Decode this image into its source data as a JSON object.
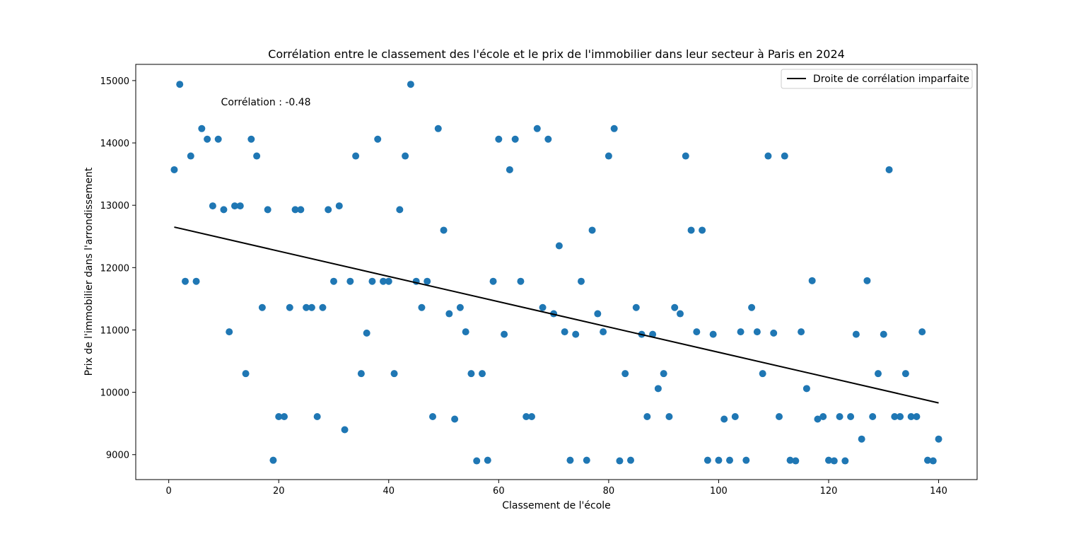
{
  "chart_data": {
    "type": "scatter",
    "title": "Corrélation entre le classement des l'école et le prix de l'immobilier dans leur secteur à Paris en 2024",
    "xlabel": "Classement de l'école",
    "ylabel": "Prix de l'immobilier dans l'arrondissement",
    "xlim": [
      -6,
      147
    ],
    "ylim": [
      8600,
      15260
    ],
    "x_ticks": [
      0,
      20,
      40,
      60,
      80,
      100,
      120,
      140
    ],
    "y_ticks": [
      9000,
      10000,
      11000,
      12000,
      13000,
      14000,
      15000
    ],
    "grid": false,
    "legend_position": "top-right",
    "annotation": "Corrélation : -0.48",
    "annotation_pos": [
      9.5,
      14600
    ],
    "colors": {
      "points": "#1f77b4",
      "line": "#000000"
    },
    "series": [
      {
        "kind": "scatter",
        "x": [
          1,
          2,
          3,
          4,
          5,
          6,
          7,
          8,
          9,
          10,
          11,
          12,
          13,
          14,
          15,
          16,
          17,
          18,
          19,
          20,
          21,
          22,
          23,
          24,
          25,
          26,
          27,
          28,
          29,
          30,
          31,
          32,
          33,
          34,
          35,
          36,
          37,
          38,
          39,
          40,
          41,
          42,
          43,
          44,
          45,
          46,
          47,
          48,
          49,
          50,
          51,
          52,
          53,
          54,
          55,
          56,
          57,
          58,
          59,
          60,
          61,
          62,
          63,
          64,
          65,
          66,
          67,
          68,
          69,
          70,
          71,
          72,
          73,
          74,
          75,
          76,
          77,
          78,
          79,
          80,
          81,
          82,
          83,
          84,
          85,
          86,
          87,
          88,
          89,
          90,
          91,
          92,
          93,
          94,
          95,
          96,
          97,
          98,
          99,
          100,
          101,
          102,
          103,
          104,
          105,
          106,
          107,
          108,
          109,
          110,
          111,
          112,
          113,
          114,
          115,
          116,
          117,
          118,
          119,
          120,
          121,
          122,
          123,
          124,
          125,
          126,
          127,
          128,
          129,
          130,
          131,
          132,
          133,
          134,
          135,
          136,
          137,
          138,
          139,
          140
        ],
        "y": [
          13570,
          14940,
          11780,
          13790,
          11780,
          14230,
          14060,
          12990,
          14060,
          12930,
          10970,
          12990,
          12990,
          10300,
          14060,
          13790,
          11360,
          12930,
          8910,
          9610,
          9610,
          11360,
          12930,
          12930,
          11360,
          11360,
          9610,
          11360,
          12930,
          11780,
          12990,
          9400,
          11780,
          13790,
          10300,
          10950,
          11780,
          14060,
          11780,
          11780,
          10300,
          12930,
          13790,
          14940,
          11780,
          11360,
          11780,
          9610,
          14230,
          12600,
          11260,
          9570,
          11360,
          10970,
          10300,
          8900,
          10300,
          8910,
          11780,
          14060,
          10930,
          13570,
          14060,
          11780,
          9610,
          9610,
          14230,
          11360,
          14060,
          11260,
          12350,
          10970,
          8910,
          10930,
          11780,
          8910,
          12600,
          11260,
          10970,
          13790,
          14230,
          8900,
          10300,
          8910,
          11360,
          10930,
          9610,
          10930,
          10060,
          10300,
          9610,
          11360,
          11260,
          13790,
          12600,
          10970,
          12600,
          8910,
          10930,
          8910,
          9570,
          8910,
          9610,
          10970,
          8910,
          11360,
          10970,
          10300,
          13790,
          10950,
          9610,
          13790,
          8910,
          8900,
          10970,
          10060,
          11790,
          9570,
          9610,
          8910,
          8900,
          9610,
          8900,
          9610,
          10930,
          9250,
          11790,
          9610,
          10300,
          10930,
          13570,
          9610,
          9610,
          10300,
          9610,
          9610,
          10970,
          8910,
          8900,
          9250
        ]
      },
      {
        "kind": "line",
        "name": "Droite de corrélation imparfaite",
        "x": [
          1,
          140
        ],
        "y": [
          12650,
          9830
        ]
      }
    ]
  }
}
